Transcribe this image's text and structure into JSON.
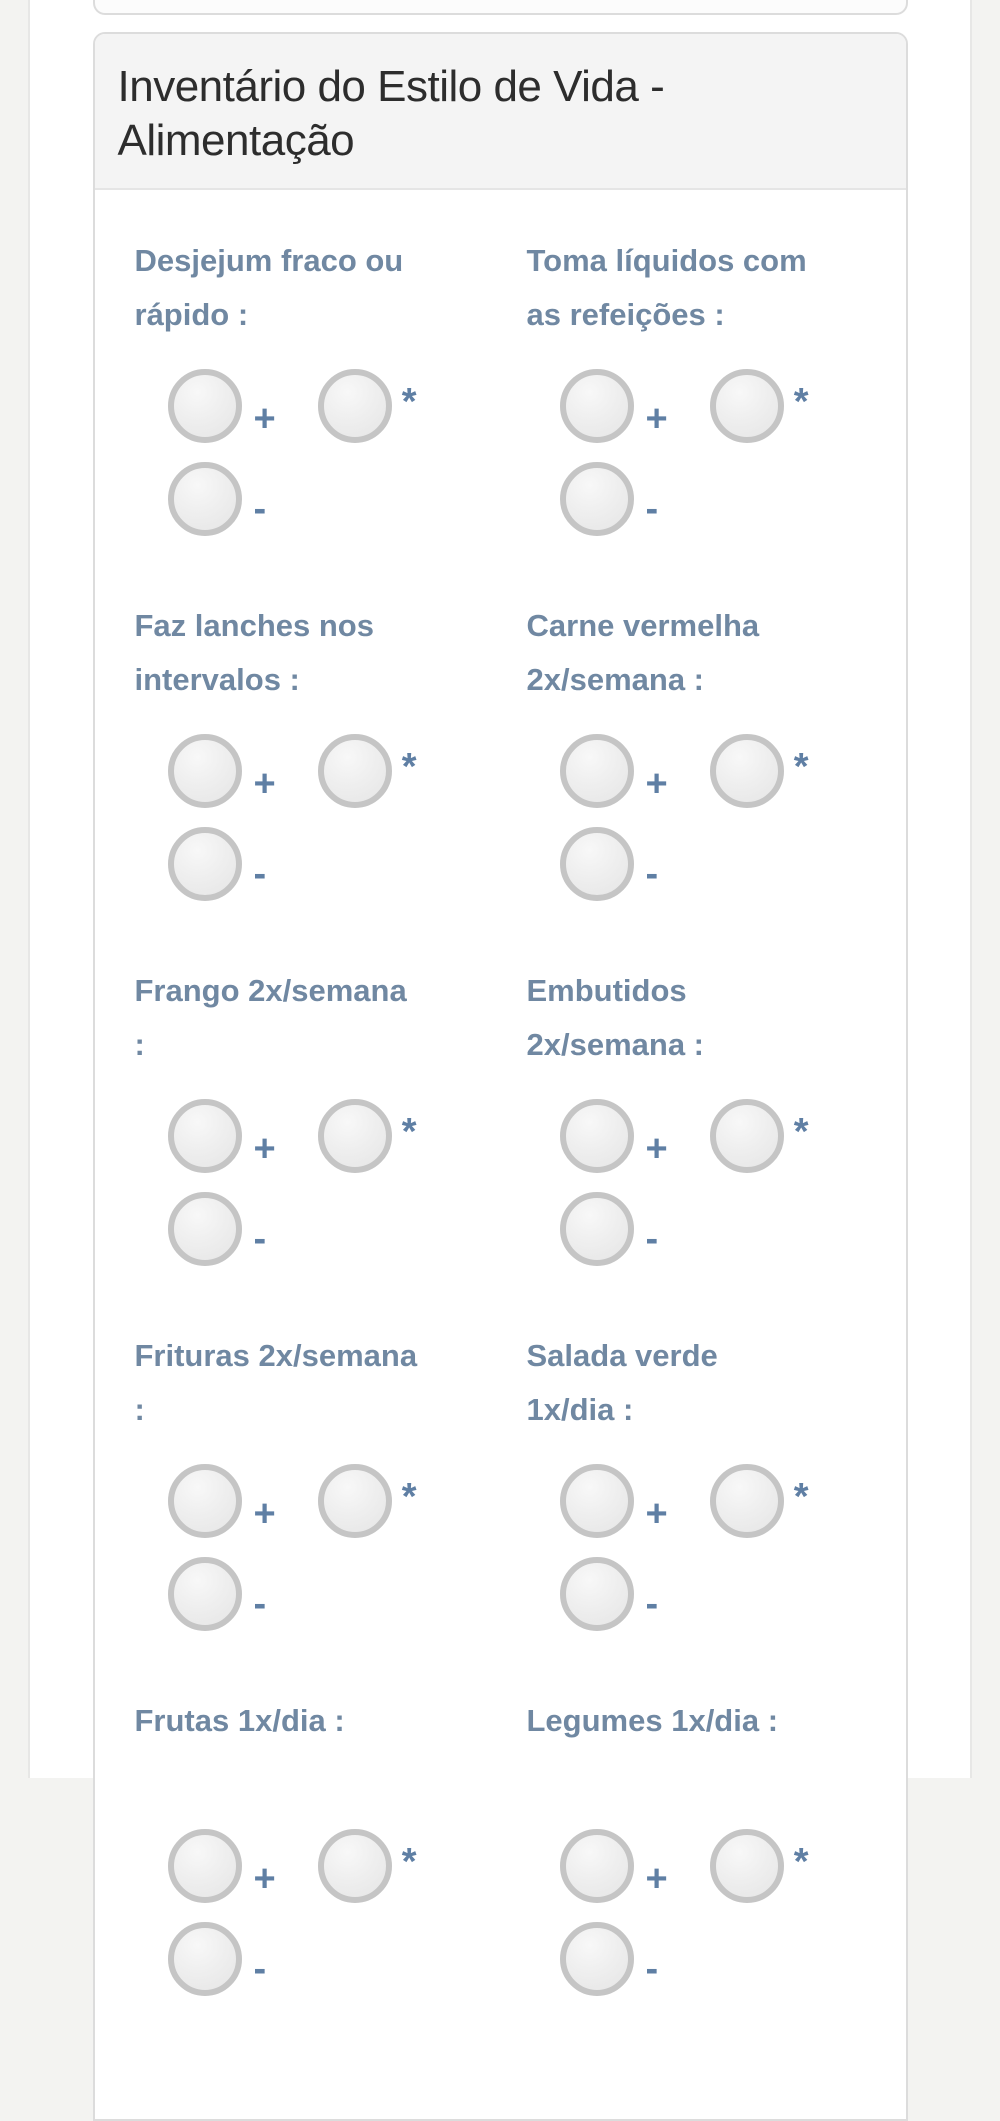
{
  "panel": {
    "title": "Inventário do Estilo de Vida - Alimentação",
    "questions": [
      {
        "lines": [
          "Desjejum fraco ou",
          "rápido :"
        ],
        "options": [
          "+",
          "*",
          "-"
        ]
      },
      {
        "lines": [
          "Toma líquidos com",
          "as refeições :"
        ],
        "options": [
          "+",
          "*",
          "-"
        ]
      },
      {
        "lines": [
          "Faz lanches nos",
          "intervalos :"
        ],
        "options": [
          "+",
          "*",
          "-"
        ]
      },
      {
        "lines": [
          "Carne vermelha",
          "2x/semana :"
        ],
        "options": [
          "+",
          "*",
          "-"
        ]
      },
      {
        "lines": [
          "Frango 2x/semana",
          ":"
        ],
        "options": [
          "+",
          "*",
          "-"
        ]
      },
      {
        "lines": [
          "Embutidos",
          "2x/semana :"
        ],
        "options": [
          "+",
          "*",
          "-"
        ]
      },
      {
        "lines": [
          "Frituras 2x/semana",
          ":"
        ],
        "options": [
          "+",
          "*",
          "-"
        ]
      },
      {
        "lines": [
          "Salada verde",
          "1x/dia :"
        ],
        "options": [
          "+",
          "*",
          "-"
        ]
      },
      {
        "lines": [
          "Frutas 1x/dia :",
          ""
        ],
        "options": [
          "+",
          "*",
          "-"
        ]
      },
      {
        "lines": [
          "Legumes 1x/dia :",
          ""
        ],
        "options": [
          "+",
          "*",
          "-"
        ]
      }
    ]
  },
  "colors": {
    "page_bg": "#f3f3f1",
    "panel_border": "#dcdcdc",
    "header_bg": "#f4f4f4",
    "title_text": "#2d2d2d",
    "question_label": "#7088a2",
    "option_symbol": "#5f7fa4",
    "radio_border": "#c5c5c5"
  }
}
